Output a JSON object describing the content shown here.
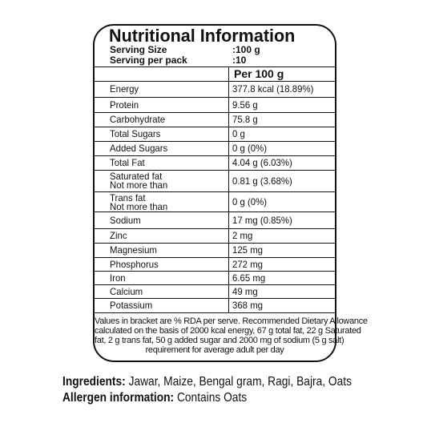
{
  "title": "Nutritional Information",
  "serving": [
    {
      "label": "Serving Size",
      "value": ":100 g"
    },
    {
      "label": "Serving per pack",
      "value": ":10"
    }
  ],
  "table": {
    "header": "Per 100 g",
    "rows": [
      [
        "Energy",
        "377.8 kcal (18.89%)"
      ],
      [
        "Protein",
        "9.56 g"
      ],
      [
        "Carbohydrate",
        "75.8 g"
      ],
      [
        "Total Sugars",
        "0 g"
      ],
      [
        "Added Sugars",
        "0 g (0%)"
      ],
      [
        "Total Fat",
        "4.04 g (6.03%)"
      ],
      [
        [
          "Saturated fat",
          "Not more than"
        ],
        "0.81 g (3.68%)"
      ],
      [
        [
          "Trans fat",
          "Not more than"
        ],
        "0 g (0%)"
      ],
      [
        "Sodium",
        "17 mg  (0.85%)"
      ],
      [
        "Zinc",
        "2 mg"
      ],
      [
        "Magnesium",
        "125 mg"
      ],
      [
        "Phosphorus",
        "272 mg"
      ],
      [
        "Iron",
        "6.65 mg"
      ],
      [
        "Calcium",
        "49 mg"
      ],
      [
        "Potassium",
        "368 mg"
      ]
    ]
  },
  "footnote": [
    "Values in bracket are % RDA per serve. Recommended Dietary Allowance",
    "calculated on the basis of 2000 kcal energy, 67 g total fat, 22 g Saturated",
    "fat, 2 g trans fat, 50 g added sugar and 2000 mg of sodium (5 g salt)",
    "requirement for average adult per day"
  ],
  "ingredients": {
    "label": "Ingredients:",
    "text": "Jawar, Maize, Bengal gram, Ragi, Bajra, Oats"
  },
  "allergen": {
    "label": "Allergen information:",
    "text": "Contains Oats"
  }
}
